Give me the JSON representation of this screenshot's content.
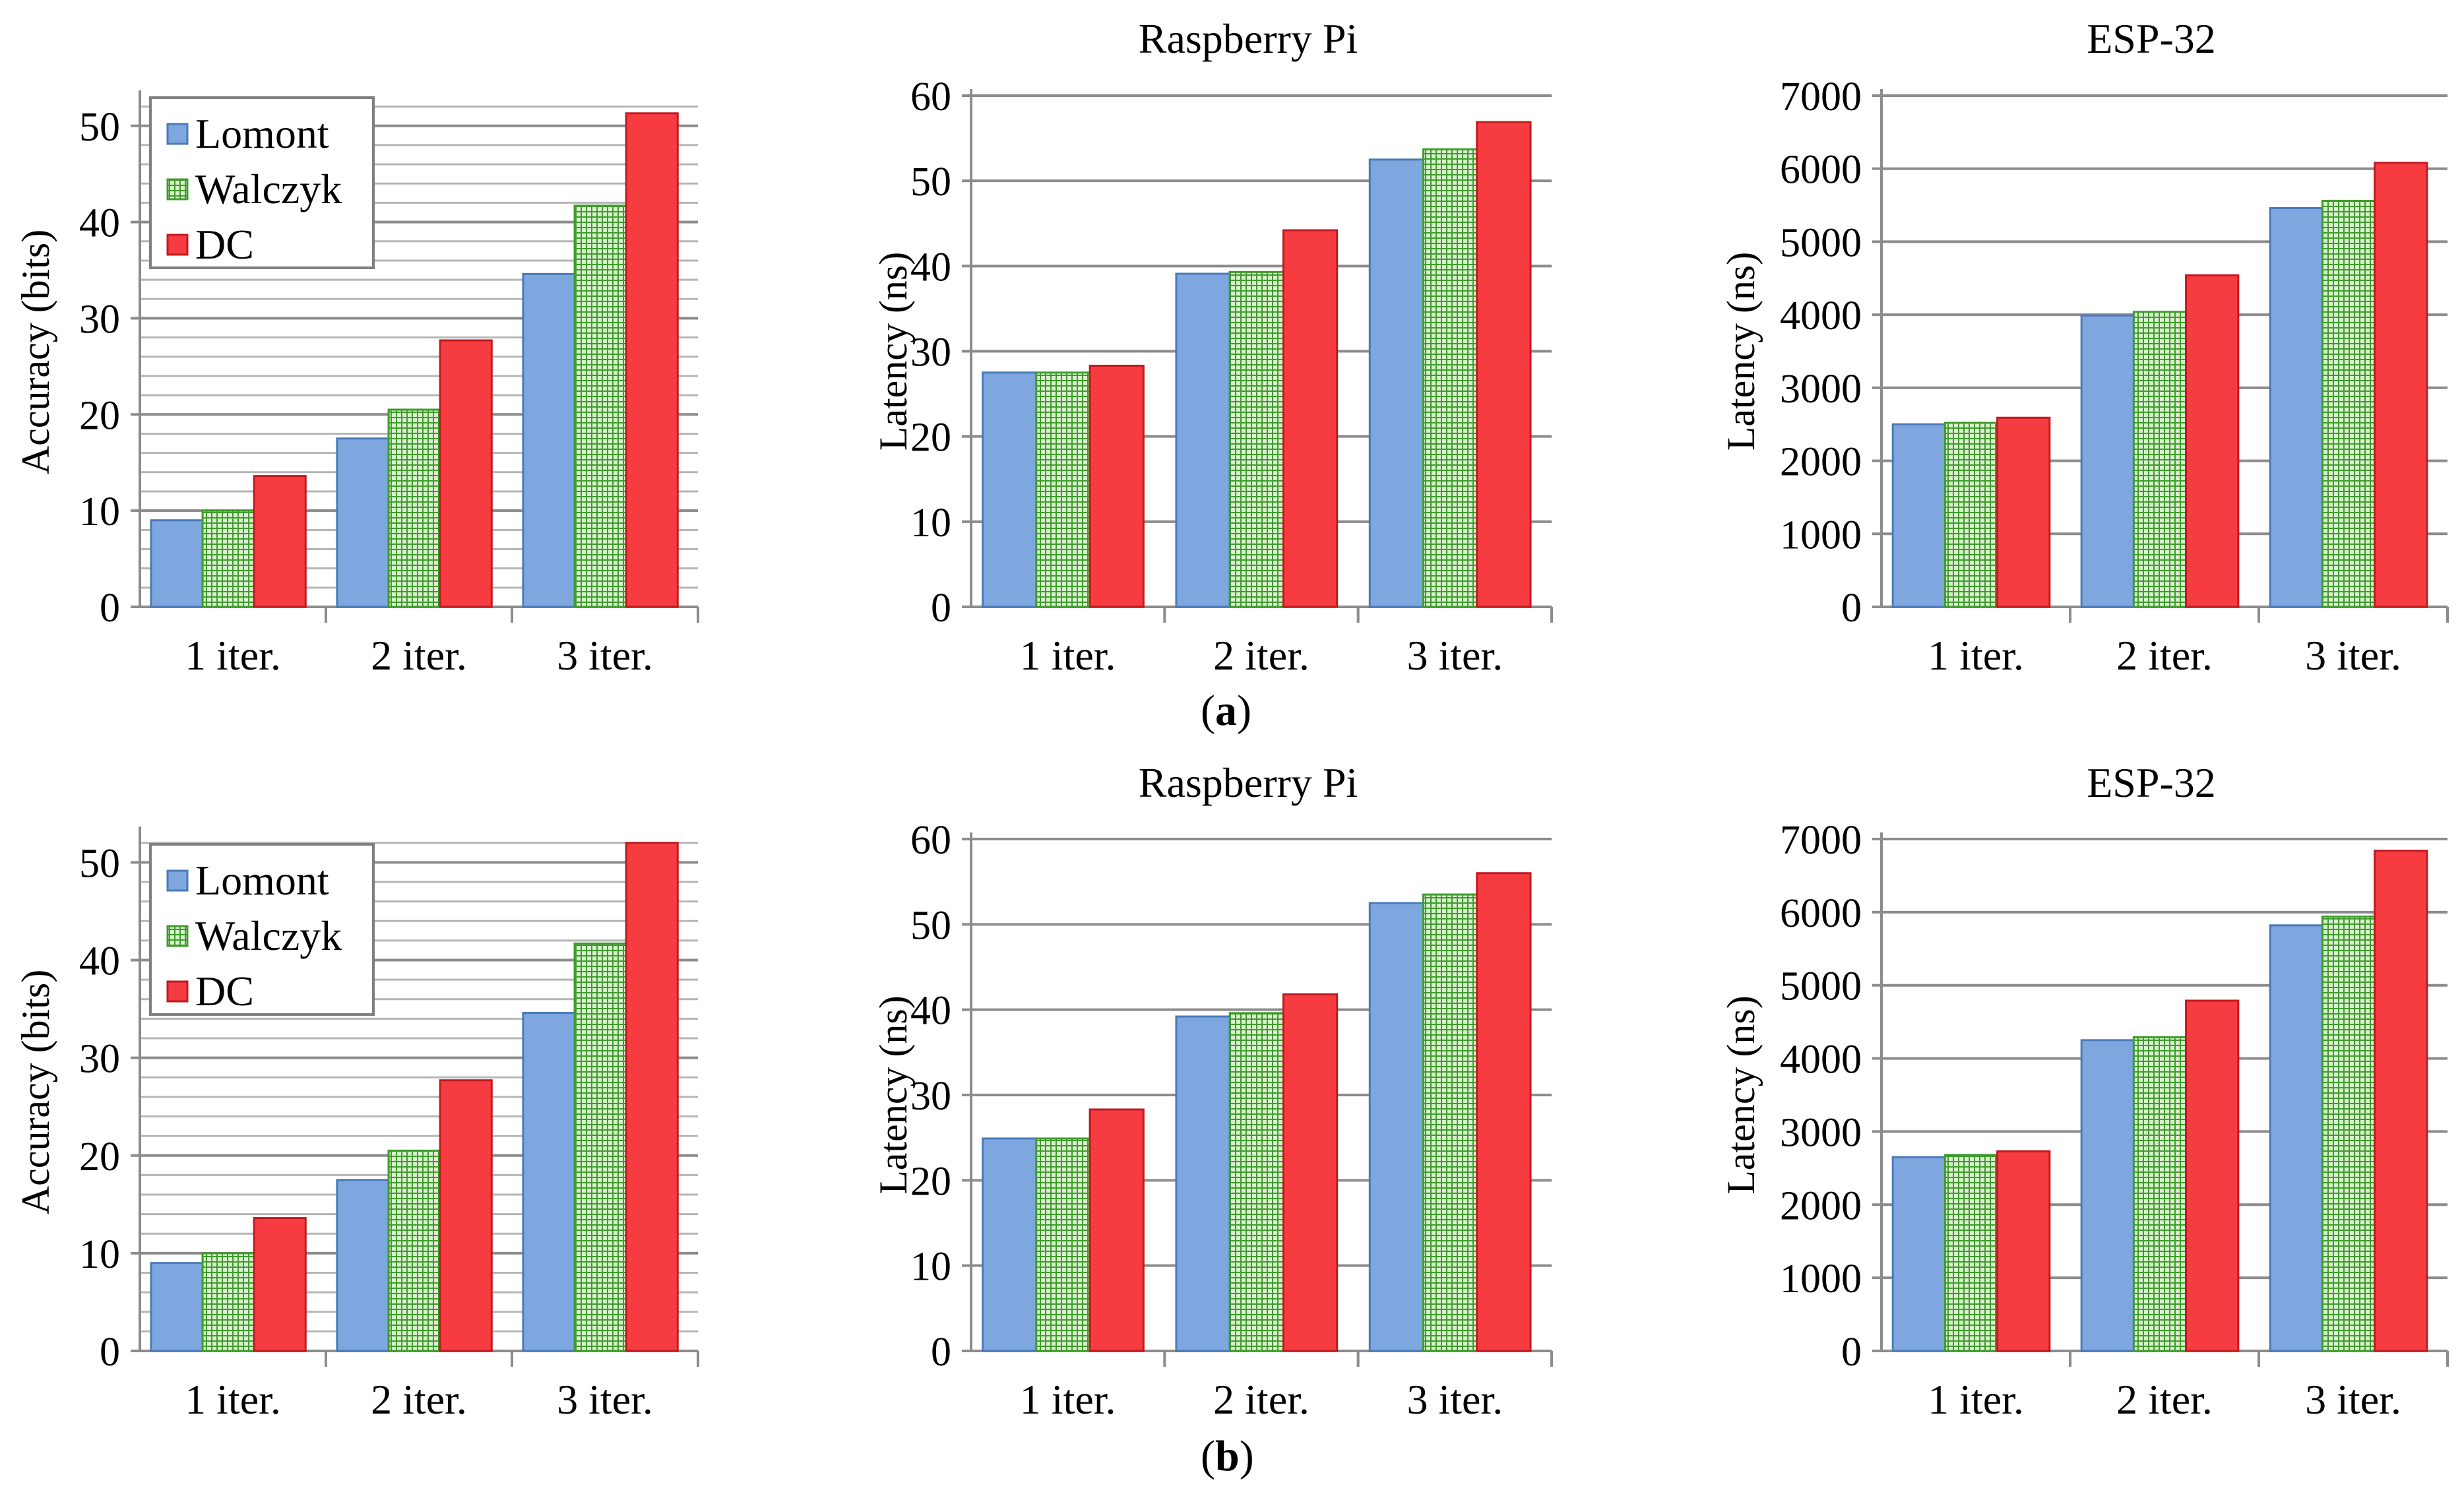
{
  "figure": {
    "caption_a": "a",
    "caption_b": "b"
  },
  "colors": {
    "lomont": "#7ea7df",
    "lomont_edge": "#4a7ab8",
    "walczyk": "#a7df94",
    "walczyk_edge": "#3f9c2c",
    "dc": "#f73c41",
    "dc_edge": "#c01a1f",
    "grid": "#8c8c8c",
    "axis": "#8c8c8c",
    "text": "#000000"
  },
  "chart_data": [
    {
      "id": "a-accuracy",
      "type": "bar",
      "title": "",
      "xlabel": "",
      "ylabel": "Accuracy (bits)",
      "categories": [
        "1 iter.",
        "2 iter.",
        "3 iter."
      ],
      "ylim": [
        0,
        53
      ],
      "yticks": [
        0,
        10,
        20,
        30,
        40,
        50
      ],
      "minor_grid_step": 2,
      "legend": "top-left",
      "series": [
        {
          "name": "Lomont",
          "values": [
            9,
            17.5,
            34.6
          ]
        },
        {
          "name": "Walczyk",
          "values": [
            10,
            20.5,
            41.7
          ]
        },
        {
          "name": "DC",
          "values": [
            13.6,
            27.7,
            51.3
          ]
        }
      ]
    },
    {
      "id": "a-raspberry",
      "type": "bar",
      "title": "Raspberry Pi",
      "xlabel": "",
      "ylabel": "Latency (ns)",
      "categories": [
        "1 iter.",
        "2 iter.",
        "3 iter."
      ],
      "ylim": [
        0,
        60
      ],
      "yticks": [
        0,
        10,
        20,
        30,
        40,
        50,
        60
      ],
      "series": [
        {
          "name": "Lomont",
          "values": [
            27.5,
            39.1,
            52.5
          ]
        },
        {
          "name": "Walczyk",
          "values": [
            27.5,
            39.3,
            53.7
          ]
        },
        {
          "name": "DC",
          "values": [
            28.3,
            44.2,
            56.9
          ]
        }
      ]
    },
    {
      "id": "a-esp32",
      "type": "bar",
      "title": "ESP-32",
      "xlabel": "",
      "ylabel": "Latency (ns)",
      "categories": [
        "1 iter.",
        "2 iter.",
        "3 iter."
      ],
      "ylim": [
        0,
        7000
      ],
      "yticks": [
        0,
        1000,
        2000,
        3000,
        4000,
        5000,
        6000,
        7000
      ],
      "series": [
        {
          "name": "Lomont",
          "values": [
            2500,
            3990,
            5460
          ]
        },
        {
          "name": "Walczyk",
          "values": [
            2520,
            4040,
            5560
          ]
        },
        {
          "name": "DC",
          "values": [
            2590,
            4540,
            6080
          ]
        }
      ]
    },
    {
      "id": "b-accuracy",
      "type": "bar",
      "title": "",
      "xlabel": "",
      "ylabel": "Accuracy (bits)",
      "categories": [
        "1 iter.",
        "2 iter.",
        "3 iter."
      ],
      "ylim": [
        0,
        53
      ],
      "yticks": [
        0,
        10,
        20,
        30,
        40,
        50
      ],
      "minor_grid_step": 2,
      "legend": "top-left",
      "series": [
        {
          "name": "Lomont",
          "values": [
            9,
            17.5,
            34.6
          ]
        },
        {
          "name": "Walczyk",
          "values": [
            10,
            20.5,
            41.7
          ]
        },
        {
          "name": "DC",
          "values": [
            13.6,
            27.7,
            52
          ]
        }
      ]
    },
    {
      "id": "b-raspberry",
      "type": "bar",
      "title": "Raspberry Pi",
      "xlabel": "",
      "ylabel": "Latency (ns)",
      "categories": [
        "1 iter.",
        "2 iter.",
        "3 iter."
      ],
      "ylim": [
        0,
        60
      ],
      "yticks": [
        0,
        10,
        20,
        30,
        40,
        50,
        60
      ],
      "series": [
        {
          "name": "Lomont",
          "values": [
            24.9,
            39.2,
            52.5
          ]
        },
        {
          "name": "Walczyk",
          "values": [
            24.9,
            39.6,
            53.5
          ]
        },
        {
          "name": "DC",
          "values": [
            28.3,
            41.8,
            56
          ]
        }
      ]
    },
    {
      "id": "b-esp32",
      "type": "bar",
      "title": "ESP-32",
      "xlabel": "",
      "ylabel": "Latency (ns)",
      "categories": [
        "1 iter.",
        "2 iter.",
        "3 iter."
      ],
      "ylim": [
        0,
        7000
      ],
      "yticks": [
        0,
        1000,
        2000,
        3000,
        4000,
        5000,
        6000,
        7000
      ],
      "series": [
        {
          "name": "Lomont",
          "values": [
            2650,
            4250,
            5820
          ]
        },
        {
          "name": "Walczyk",
          "values": [
            2680,
            4290,
            5940
          ]
        },
        {
          "name": "DC",
          "values": [
            2730,
            4790,
            6840
          ]
        }
      ]
    }
  ]
}
